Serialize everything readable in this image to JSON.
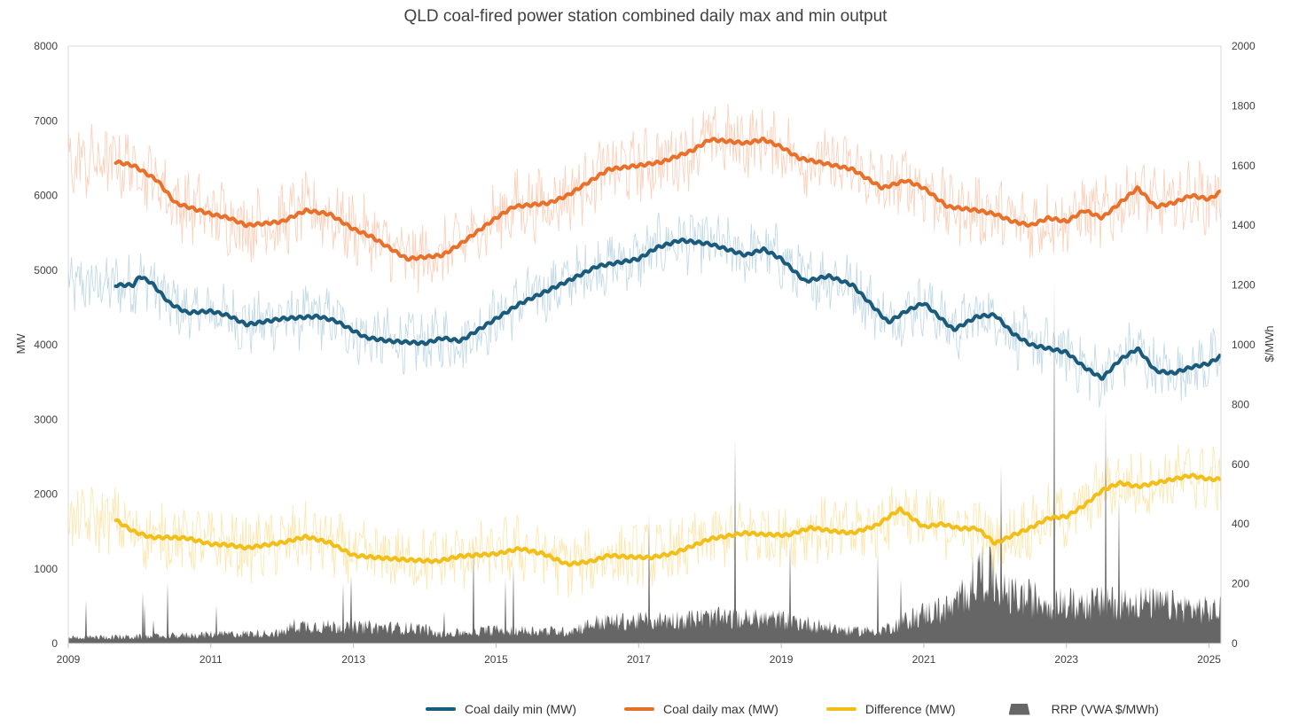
{
  "chart_data": {
    "type": "line",
    "title": "QLD coal-fired power station combined daily max and min output",
    "ylabel": "MW",
    "y2label": "$/MWh",
    "ylim": [
      0,
      8000
    ],
    "y2lim": [
      0,
      2000
    ],
    "xlim": [
      "2009-01-01",
      "2025-03-01"
    ],
    "x_ticks": [
      "2009",
      "2011",
      "2013",
      "2015",
      "2017",
      "2019",
      "2021",
      "2023",
      "2025"
    ],
    "y_ticks": [
      "0",
      "1000",
      "2000",
      "3000",
      "4000",
      "5000",
      "6000",
      "7000",
      "8000"
    ],
    "y2_ticks": [
      "0",
      "200",
      "400",
      "600",
      "800",
      "1000",
      "1200",
      "1400",
      "1600",
      "1800",
      "2000"
    ],
    "grid": false,
    "legend_position": "bottom",
    "colors": {
      "min": "#1a5a7a",
      "min_raw": "#b9d3e2",
      "max": "#e8702a",
      "max_raw": "#f9c9b0",
      "diff": "#f2be1a",
      "diff_raw": "#fbe3a1",
      "rrp": "#666666"
    },
    "series": [
      {
        "name": "Coal daily min (MW)",
        "axis": "left",
        "style": "rolling average line",
        "x": [
          "2009-09",
          "2009-12",
          "2010-01",
          "2010-03",
          "2010-06",
          "2010-09",
          "2011-01",
          "2011-04",
          "2011-07",
          "2012-01",
          "2012-07",
          "2012-10",
          "2013-03",
          "2013-07",
          "2014-01",
          "2014-04",
          "2014-07",
          "2015-01",
          "2015-05",
          "2015-09",
          "2016-01",
          "2016-06",
          "2017-01",
          "2017-04",
          "2017-08",
          "2018-01",
          "2018-07",
          "2018-10",
          "2019-01",
          "2019-05",
          "2019-09",
          "2020-01",
          "2020-07",
          "2020-10",
          "2021-01",
          "2021-06",
          "2021-10",
          "2022-01",
          "2022-04",
          "2022-07",
          "2022-10",
          "2023-01",
          "2023-04",
          "2023-07",
          "2023-10",
          "2024-01",
          "2024-04",
          "2024-07",
          "2024-10",
          "2025-01",
          "2025-03"
        ],
        "values": [
          4800,
          4800,
          4920,
          4830,
          4560,
          4430,
          4450,
          4390,
          4270,
          4350,
          4380,
          4320,
          4100,
          4050,
          4020,
          4090,
          4050,
          4350,
          4550,
          4700,
          4850,
          5050,
          5150,
          5300,
          5400,
          5350,
          5200,
          5280,
          5150,
          4850,
          4920,
          4800,
          4300,
          4450,
          4560,
          4200,
          4380,
          4400,
          4150,
          4000,
          3950,
          3900,
          3700,
          3550,
          3800,
          3950,
          3650,
          3620,
          3700,
          3750,
          3850
        ]
      },
      {
        "name": "Coal daily max (MW)",
        "axis": "left",
        "style": "rolling average line",
        "x": [
          "2009-09",
          "2009-12",
          "2010-01",
          "2010-04",
          "2010-07",
          "2011-01",
          "2011-04",
          "2011-07",
          "2012-01",
          "2012-05",
          "2012-09",
          "2013-01",
          "2013-04",
          "2013-10",
          "2014-04",
          "2014-07",
          "2015-01",
          "2015-04",
          "2015-10",
          "2016-01",
          "2016-04",
          "2016-08",
          "2017-01",
          "2017-05",
          "2017-10",
          "2018-01",
          "2018-07",
          "2018-10",
          "2019-01",
          "2019-04",
          "2019-10",
          "2020-01",
          "2020-06",
          "2020-10",
          "2021-01",
          "2021-05",
          "2021-10",
          "2022-01",
          "2022-04",
          "2022-07",
          "2022-10",
          "2023-01",
          "2023-04",
          "2023-07",
          "2023-10",
          "2024-01",
          "2024-04",
          "2024-07",
          "2024-10",
          "2025-01",
          "2025-03"
        ],
        "values": [
          6450,
          6400,
          6350,
          6200,
          5900,
          5750,
          5700,
          5600,
          5650,
          5800,
          5750,
          5550,
          5450,
          5150,
          5200,
          5350,
          5700,
          5850,
          5900,
          6000,
          6150,
          6350,
          6400,
          6450,
          6600,
          6750,
          6700,
          6750,
          6650,
          6500,
          6400,
          6350,
          6100,
          6200,
          6100,
          5850,
          5800,
          5750,
          5650,
          5600,
          5700,
          5650,
          5800,
          5700,
          5900,
          6100,
          5850,
          5900,
          6000,
          5950,
          6050
        ]
      },
      {
        "name": "Difference (MW)",
        "axis": "left",
        "style": "rolling average line",
        "x": [
          "2009-09",
          "2009-12",
          "2010-03",
          "2010-06",
          "2010-09",
          "2011-01",
          "2011-04",
          "2011-07",
          "2012-01",
          "2012-05",
          "2012-09",
          "2013-01",
          "2013-05",
          "2013-10",
          "2014-03",
          "2014-07",
          "2015-01",
          "2015-05",
          "2015-09",
          "2016-01",
          "2016-05",
          "2016-08",
          "2016-11",
          "2017-03",
          "2017-07",
          "2018-01",
          "2018-07",
          "2018-10",
          "2019-02",
          "2019-06",
          "2019-10",
          "2020-01",
          "2020-05",
          "2020-09",
          "2021-01",
          "2021-04",
          "2021-07",
          "2021-10",
          "2022-01",
          "2022-04",
          "2022-07",
          "2022-10",
          "2023-01",
          "2023-04",
          "2023-07",
          "2023-10",
          "2024-01",
          "2024-04",
          "2024-07",
          "2024-10",
          "2025-01",
          "2025-03"
        ],
        "values": [
          1650,
          1500,
          1420,
          1420,
          1410,
          1330,
          1320,
          1280,
          1350,
          1430,
          1350,
          1180,
          1150,
          1120,
          1100,
          1170,
          1200,
          1270,
          1200,
          1060,
          1100,
          1180,
          1160,
          1150,
          1210,
          1400,
          1480,
          1460,
          1450,
          1550,
          1500,
          1480,
          1580,
          1800,
          1560,
          1600,
          1540,
          1540,
          1340,
          1450,
          1550,
          1680,
          1700,
          1850,
          2050,
          2150,
          2100,
          2150,
          2200,
          2250,
          2200,
          2200
        ]
      },
      {
        "name": "RRP (VWA $/MWh)",
        "axis": "right",
        "style": "area",
        "x": [
          "2009-01",
          "2010-01",
          "2011-01",
          "2012-01",
          "2012-03",
          "2013-01",
          "2014-01",
          "2014-03",
          "2015-01",
          "2016-01",
          "2016-06",
          "2017-01",
          "2018-01",
          "2019-01",
          "2020-01",
          "2020-06",
          "2021-01",
          "2021-06",
          "2021-11",
          "2022-03",
          "2022-07",
          "2023-01",
          "2024-01",
          "2025-01"
        ],
        "values": [
          20,
          22,
          30,
          35,
          60,
          55,
          50,
          30,
          45,
          40,
          70,
          75,
          85,
          80,
          40,
          45,
          100,
          120,
          250,
          160,
          150,
          130,
          140,
          110
        ]
      }
    ]
  },
  "legend": {
    "items": [
      {
        "label": "Coal daily min (MW)",
        "color": "#1a5a7a"
      },
      {
        "label": "Coal daily max (MW)",
        "color": "#e8702a"
      },
      {
        "label": "Difference (MW)",
        "color": "#f2be1a"
      },
      {
        "label": "RRP (VWA $/MWh)",
        "color": "#666666"
      }
    ]
  }
}
